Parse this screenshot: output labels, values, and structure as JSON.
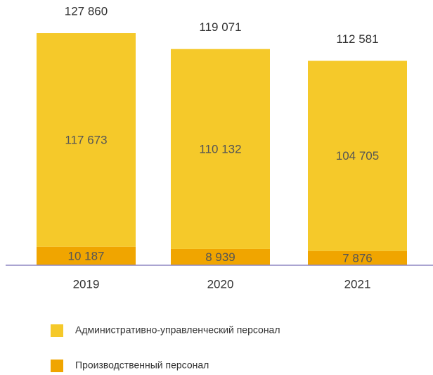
{
  "chart_data": {
    "type": "stacked_bar",
    "categories": [
      "2019",
      "2020",
      "2021"
    ],
    "series": [
      {
        "name": "Производственный персонал",
        "color": "#f0a500",
        "values": [
          10187,
          8939,
          7876
        ],
        "value_labels": [
          "10 187",
          "8 939",
          "7 876"
        ]
      },
      {
        "name": "Административно-управленческий персонал",
        "color": "#f5c92a",
        "values": [
          117673,
          110132,
          104705
        ],
        "value_labels": [
          "117 673",
          "110 132",
          "104 705"
        ]
      }
    ],
    "totals": [
      127860,
      119071,
      112581
    ],
    "total_labels": [
      "127 860",
      "119 071",
      "112 581"
    ],
    "ylim": [
      0,
      130000
    ]
  }
}
